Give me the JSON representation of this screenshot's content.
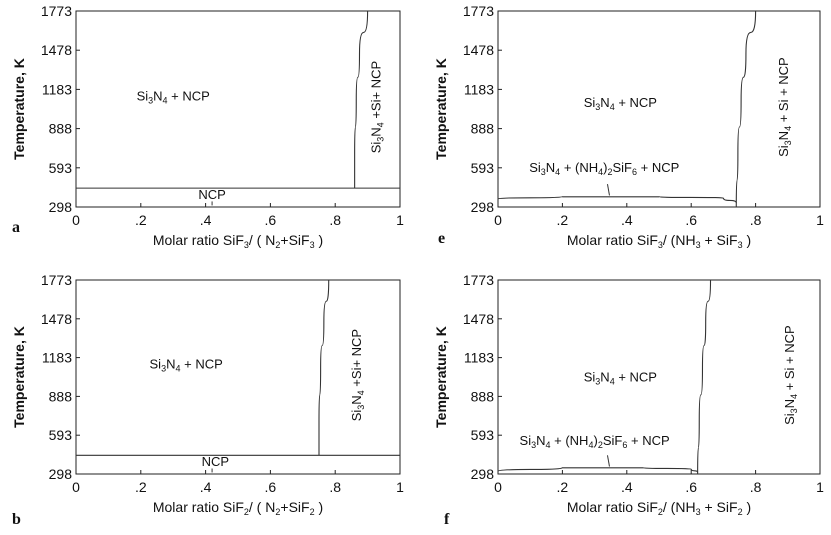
{
  "chart_data": [
    {
      "type": "area",
      "panel_label": "a",
      "ylabel": "Temperature, K",
      "xlabel_html": "Molar ratio SiF<tspan dy='3' font-size='10'>3</tspan><tspan dy='-3'>/ ( N</tspan><tspan dy='3' font-size='10'>2</tspan><tspan dy='-3'>+SiF</tspan><tspan dy='3' font-size='10'>3</tspan><tspan dy='-3'> )</tspan>",
      "xlabel": "Molar ratio SiF3/ ( N2+SiF3 )",
      "x_ticks": [
        "0",
        ".2",
        ".4",
        ".6",
        ".8",
        "1"
      ],
      "y_ticks": [
        "298",
        "593",
        "888",
        "1183",
        "1478",
        "1773"
      ],
      "xlim": [
        0,
        1
      ],
      "ylim": [
        298,
        1773
      ],
      "boundaries": [
        {
          "kind": "horizontal",
          "y": 440,
          "x_from": 0,
          "x_to": 1
        },
        {
          "kind": "curve",
          "points": [
            [
              0.86,
              440
            ],
            [
              0.86,
              700
            ],
            [
              0.865,
              1100
            ],
            [
              0.875,
              1450
            ],
            [
              0.9,
              1773
            ]
          ]
        }
      ],
      "regions": [
        {
          "text": "Si3N4 + NCP",
          "x": 0.3,
          "y": 1100,
          "rotate": false
        },
        {
          "text": "Si3N4 +Si+ NCP",
          "x": 0.94,
          "y": 1050,
          "rotate": true
        },
        {
          "text": "NCP",
          "x": 0.42,
          "y": 360,
          "rotate": false
        }
      ]
    },
    {
      "type": "area",
      "panel_label": "e",
      "ylabel": "Temperature, K",
      "xlabel": "Molar ratio SiF3/ (NH3 + SiF3 )",
      "x_ticks": [
        "0",
        ".2",
        ".4",
        ".6",
        ".8",
        "1"
      ],
      "y_ticks": [
        "298",
        "593",
        "888",
        "1183",
        "1478",
        "1773"
      ],
      "xlim": [
        0,
        1
      ],
      "ylim": [
        298,
        1773
      ],
      "boundaries": [
        {
          "kind": "curve",
          "points": [
            [
              0,
              360
            ],
            [
              0.2,
              375
            ],
            [
              0.5,
              375
            ],
            [
              0.7,
              365
            ],
            [
              0.74,
              330
            ]
          ]
        },
        {
          "kind": "curve",
          "points": [
            [
              0.74,
              300
            ],
            [
              0.745,
              700
            ],
            [
              0.755,
              1100
            ],
            [
              0.77,
              1450
            ],
            [
              0.8,
              1773
            ]
          ]
        }
      ],
      "regions": [
        {
          "text": "Si3N4 + NCP",
          "x": 0.38,
          "y": 1050,
          "rotate": false
        },
        {
          "text": "Si3N4 + (NH4)2SiF6 + NCP",
          "x": 0.33,
          "y": 560,
          "rotate": false
        },
        {
          "text": "Si3N4 + Si + NCP",
          "x": 0.9,
          "y": 1050,
          "rotate": true
        }
      ]
    },
    {
      "type": "area",
      "panel_label": "b",
      "ylabel": "Temperature, K",
      "xlabel": "Molar ratio SiF2/ ( N2+SiF2 )",
      "x_ticks": [
        "0",
        ".2",
        ".4",
        ".6",
        ".8",
        "1"
      ],
      "y_ticks": [
        "298",
        "593",
        "888",
        "1183",
        "1478",
        "1773"
      ],
      "xlim": [
        0,
        1
      ],
      "ylim": [
        298,
        1773
      ],
      "boundaries": [
        {
          "kind": "horizontal",
          "y": 440,
          "x_from": 0,
          "x_to": 1
        },
        {
          "kind": "curve",
          "points": [
            [
              0.75,
              440
            ],
            [
              0.75,
              700
            ],
            [
              0.755,
              1100
            ],
            [
              0.765,
              1450
            ],
            [
              0.78,
              1773
            ]
          ]
        }
      ],
      "regions": [
        {
          "text": "Si3N4 + NCP",
          "x": 0.34,
          "y": 1100,
          "rotate": false
        },
        {
          "text": "Si3N4 +Si+ NCP",
          "x": 0.88,
          "y": 1050,
          "rotate": true
        },
        {
          "text": "NCP",
          "x": 0.43,
          "y": 360,
          "rotate": false
        }
      ]
    },
    {
      "type": "area",
      "panel_label": "f",
      "ylabel": "Temperature, K",
      "xlabel": "Molar ratio SiF2/ (NH3 + SiF2 )",
      "x_ticks": [
        "0",
        ".2",
        ".4",
        ".6",
        ".8",
        "1"
      ],
      "y_ticks": [
        "298",
        "593",
        "888",
        "1183",
        "1478",
        "1773"
      ],
      "xlim": [
        0,
        1
      ],
      "ylim": [
        298,
        1773
      ],
      "boundaries": [
        {
          "kind": "curve",
          "points": [
            [
              0,
              320
            ],
            [
              0.2,
              345
            ],
            [
              0.45,
              345
            ],
            [
              0.6,
              335
            ],
            [
              0.62,
              310
            ]
          ]
        },
        {
          "kind": "curve",
          "points": [
            [
              0.62,
              298
            ],
            [
              0.625,
              700
            ],
            [
              0.635,
              1100
            ],
            [
              0.645,
              1450
            ],
            [
              0.66,
              1773
            ]
          ]
        }
      ],
      "regions": [
        {
          "text": "Si3N4 + NCP",
          "x": 0.38,
          "y": 1000,
          "rotate": false
        },
        {
          "text": "Si3N4 + (NH4)2SiF6 + NCP",
          "x": 0.3,
          "y": 520,
          "rotate": false
        },
        {
          "text": "Si3N4 + Si + NCP",
          "x": 0.92,
          "y": 1050,
          "rotate": true
        }
      ]
    }
  ]
}
